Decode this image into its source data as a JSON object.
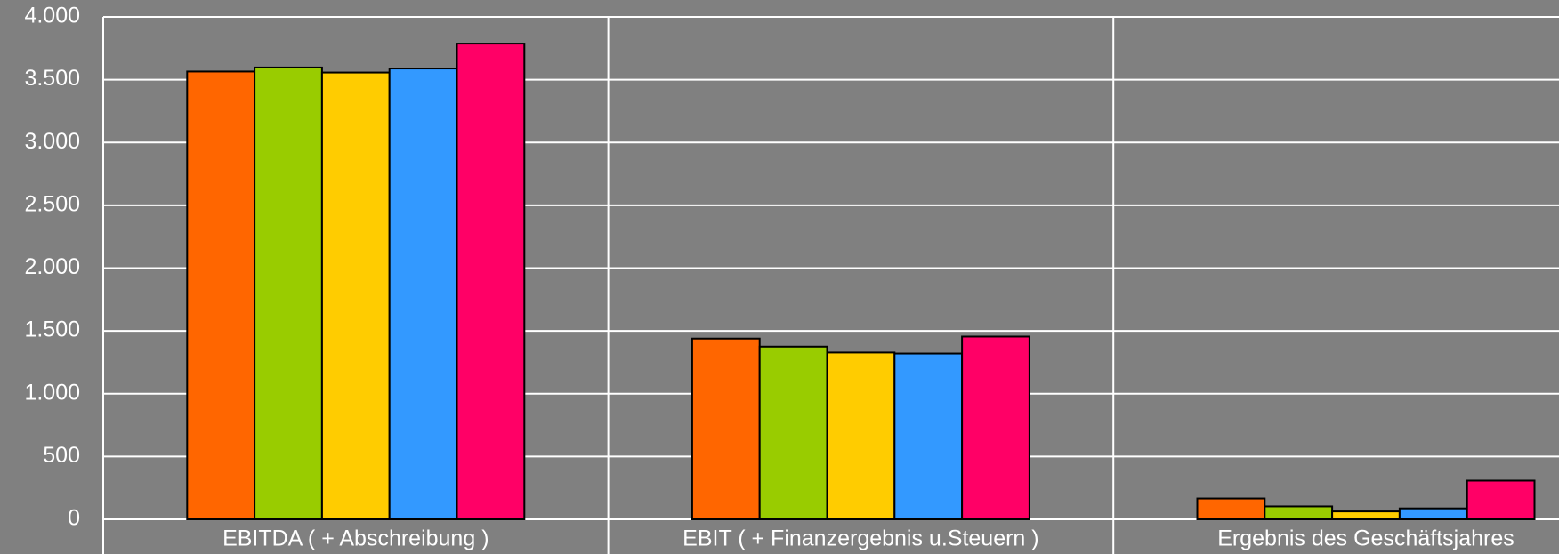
{
  "chart_data": {
    "type": "bar",
    "categories": [
      "EBITDA ( + Abschreibung )",
      "EBIT ( + Finanzergebnis u.Steuern )",
      "Ergebnis des Geschäftsjahres"
    ],
    "series": [
      {
        "color": "#ff6600",
        "values": [
          3565,
          1439,
          166
        ]
      },
      {
        "color": "#99cc00",
        "values": [
          3597,
          1375,
          103
        ]
      },
      {
        "color": "#ffcc00",
        "values": [
          3557,
          1328,
          63
        ]
      },
      {
        "color": "#3399ff",
        "values": [
          3589,
          1320,
          87
        ]
      },
      {
        "color": "#ff0066",
        "values": [
          3787,
          1455,
          308
        ]
      }
    ],
    "ylim": [
      0,
      4000
    ],
    "yticks": [
      0,
      500,
      {
        "value": 1000,
        "label": "1.000"
      },
      {
        "value": 1500,
        "label": "1.500"
      },
      {
        "value": 2000,
        "label": "2.000"
      },
      {
        "value": 2500,
        "label": "2.500"
      },
      {
        "value": 3000,
        "label": "3.000"
      },
      {
        "value": 3500,
        "label": "3.500"
      },
      {
        "value": 4000,
        "label": "4.000"
      }
    ],
    "grid": true
  }
}
